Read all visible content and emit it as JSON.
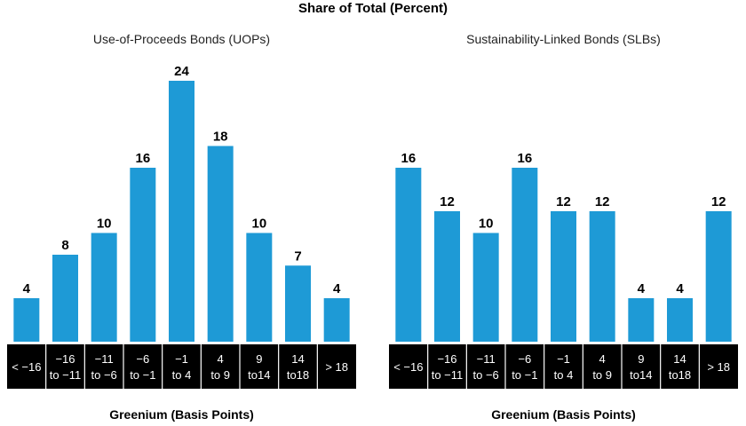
{
  "title": "Share of Total (Percent)",
  "xlabel": "Greenium (Basis Points)",
  "colors": {
    "bar": "#1E9AD6",
    "band": "#000000",
    "tick_text": "#ffffff"
  },
  "chart_data": [
    {
      "type": "bar",
      "title": "Use-of-Proceeds Bonds (UOPs)",
      "xlabel": "Greenium (Basis Points)",
      "ylabel": "Share of Total (Percent)",
      "categories": [
        [
          "< −16"
        ],
        [
          "−16",
          "to −11"
        ],
        [
          "−11",
          "to −6"
        ],
        [
          "−6",
          "to −1"
        ],
        [
          "−1",
          "to 4"
        ],
        [
          "4",
          "to 9"
        ],
        [
          "9",
          "to14"
        ],
        [
          "14",
          "to18"
        ],
        [
          "> 18"
        ]
      ],
      "values": [
        4,
        8,
        10,
        16,
        24,
        18,
        10,
        7,
        4
      ],
      "ylim": [
        0,
        24
      ],
      "grid": false,
      "legend": "none"
    },
    {
      "type": "bar",
      "title": "Sustainability-Linked Bonds (SLBs)",
      "xlabel": "Greenium (Basis Points)",
      "ylabel": "Share of Total (Percent)",
      "categories": [
        [
          "< −16"
        ],
        [
          "−16",
          "to −11"
        ],
        [
          "−11",
          "to −6"
        ],
        [
          "−6",
          "to −1"
        ],
        [
          "−1",
          "to 4"
        ],
        [
          "4",
          "to 9"
        ],
        [
          "9",
          "to14"
        ],
        [
          "14",
          "to18"
        ],
        [
          "> 18"
        ]
      ],
      "values": [
        16,
        12,
        10,
        16,
        12,
        12,
        4,
        4,
        12
      ],
      "ylim": [
        0,
        24
      ],
      "grid": false,
      "legend": "none"
    }
  ]
}
